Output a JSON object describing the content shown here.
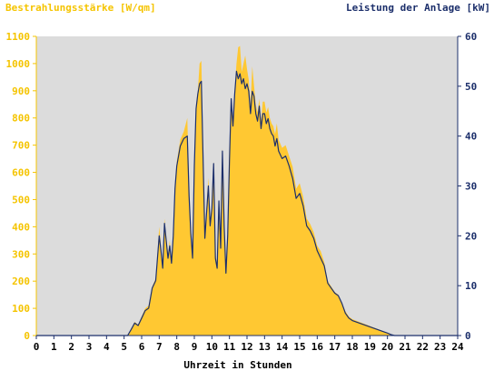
{
  "chart_data": {
    "type": "area",
    "left_axis_label": "Bestrahlungsstärke [W/qm]",
    "right_axis_label": "Leistung der Anlage [kW]",
    "xlabel": "Uhrzeit in Stunden",
    "xlim": [
      0,
      24
    ],
    "ylim_left": [
      0,
      1100
    ],
    "ylim_right": [
      0,
      60
    ],
    "x_ticks": [
      "0",
      "1",
      "2",
      "3",
      "4",
      "5",
      "6",
      "7",
      "8",
      "9",
      "10",
      "11",
      "12",
      "13",
      "14",
      "15",
      "16",
      "17",
      "18",
      "19",
      "20",
      "21",
      "22",
      "23",
      "24"
    ],
    "y_left_ticks": [
      "0",
      "100",
      "200",
      "300",
      "400",
      "500",
      "600",
      "700",
      "800",
      "900",
      "1000",
      "1100"
    ],
    "y_right_ticks": [
      "0",
      "10",
      "20",
      "30",
      "40",
      "50",
      "60"
    ],
    "grid": false,
    "colors": {
      "plot_bg": "#dcdcdc",
      "irradiance_fill": "#ffc832",
      "power_line": "#1c2f6b",
      "left_axis": "#f5c400",
      "right_axis": "#1c2f6b"
    },
    "series": [
      {
        "axis": "left",
        "style": "filled-area",
        "x": [
          0,
          5.2,
          5.4,
          5.6,
          5.8,
          6.0,
          6.2,
          6.4,
          6.6,
          6.8,
          6.9,
          7.0,
          7.1,
          7.2,
          7.3,
          7.4,
          7.5,
          7.6,
          7.7,
          7.8,
          7.9,
          8.0,
          8.2,
          8.4,
          8.6,
          8.7,
          8.8,
          8.9,
          9.0,
          9.1,
          9.2,
          9.3,
          9.4,
          9.6,
          9.8,
          9.9,
          10.0,
          10.1,
          10.2,
          10.3,
          10.4,
          10.5,
          10.6,
          10.7,
          10.8,
          10.9,
          11.0,
          11.1,
          11.2,
          11.3,
          11.4,
          11.5,
          11.6,
          11.7,
          11.8,
          11.9,
          12.0,
          12.1,
          12.2,
          12.3,
          12.4,
          12.5,
          12.6,
          12.7,
          12.8,
          12.9,
          13.0,
          13.1,
          13.2,
          13.3,
          13.4,
          13.5,
          13.6,
          13.7,
          13.8,
          14.0,
          14.2,
          14.4,
          14.6,
          14.8,
          15.0,
          15.2,
          15.4,
          15.6,
          15.8,
          16.0,
          16.2,
          16.4,
          16.6,
          16.8,
          17.0,
          17.2,
          17.4,
          17.6,
          17.8,
          18.0,
          18.4,
          18.8,
          19.2,
          19.6,
          20.0,
          20.2,
          20.4,
          24
        ],
        "y": [
          0,
          0,
          25,
          50,
          40,
          70,
          100,
          110,
          180,
          210,
          300,
          400,
          330,
          260,
          430,
          360,
          300,
          350,
          280,
          380,
          560,
          640,
          720,
          750,
          800,
          550,
          400,
          300,
          640,
          850,
          900,
          1000,
          1010,
          380,
          580,
          420,
          480,
          640,
          300,
          260,
          500,
          340,
          690,
          420,
          250,
          380,
          650,
          880,
          780,
          900,
          1000,
          1060,
          1065,
          970,
          1000,
          1030,
          980,
          940,
          850,
          990,
          920,
          850,
          820,
          870,
          790,
          860,
          860,
          820,
          840,
          800,
          780,
          770,
          740,
          780,
          720,
          690,
          700,
          660,
          620,
          540,
          560,
          510,
          430,
          410,
          380,
          330,
          310,
          270,
          200,
          180,
          160,
          150,
          120,
          90,
          70,
          60,
          50,
          40,
          30,
          20,
          10,
          5,
          0,
          0
        ]
      },
      {
        "axis": "right",
        "style": "line",
        "x": [
          0,
          5.2,
          5.4,
          5.6,
          5.8,
          6.0,
          6.2,
          6.4,
          6.6,
          6.8,
          6.9,
          7.0,
          7.1,
          7.2,
          7.3,
          7.4,
          7.5,
          7.6,
          7.7,
          7.8,
          7.9,
          8.0,
          8.2,
          8.4,
          8.6,
          8.7,
          8.8,
          8.9,
          9.0,
          9.1,
          9.2,
          9.3,
          9.4,
          9.6,
          9.8,
          9.9,
          10.0,
          10.1,
          10.2,
          10.3,
          10.4,
          10.5,
          10.6,
          10.7,
          10.8,
          10.9,
          11.0,
          11.1,
          11.2,
          11.3,
          11.4,
          11.5,
          11.6,
          11.7,
          11.8,
          11.9,
          12.0,
          12.1,
          12.2,
          12.3,
          12.4,
          12.5,
          12.6,
          12.7,
          12.8,
          12.9,
          13.0,
          13.1,
          13.2,
          13.3,
          13.4,
          13.5,
          13.6,
          13.7,
          13.8,
          14.0,
          14.2,
          14.4,
          14.6,
          14.8,
          15.0,
          15.2,
          15.4,
          15.6,
          15.8,
          16.0,
          16.2,
          16.4,
          16.6,
          16.8,
          17.0,
          17.2,
          17.4,
          17.6,
          17.8,
          18.0,
          18.4,
          18.8,
          19.2,
          19.6,
          20.0,
          20.2,
          20.4,
          24
        ],
        "y": [
          0,
          0,
          1.2,
          2.5,
          2.0,
          3.5,
          5.0,
          5.5,
          9.5,
          11.0,
          15.5,
          20.0,
          17.0,
          13.5,
          22.5,
          19.0,
          15.5,
          18.0,
          14.5,
          20.0,
          29.5,
          34.0,
          38.0,
          39.5,
          40.0,
          28.0,
          20.5,
          15.5,
          34.0,
          45.5,
          48.5,
          50.5,
          51.0,
          19.5,
          30.0,
          22.0,
          25.5,
          34.5,
          15.5,
          13.5,
          27.0,
          17.5,
          37.0,
          22.0,
          12.5,
          20.0,
          35.0,
          47.5,
          42.0,
          48.5,
          53.0,
          51.5,
          52.5,
          50.5,
          51.5,
          49.5,
          50.5,
          49.0,
          44.5,
          49.0,
          48.0,
          44.5,
          43.0,
          46.0,
          41.5,
          44.5,
          44.5,
          42.5,
          43.5,
          41.5,
          40.5,
          40.0,
          38.0,
          39.5,
          37.0,
          35.5,
          36.0,
          34.0,
          31.5,
          27.5,
          28.5,
          26.0,
          22.0,
          21.0,
          19.5,
          17.0,
          15.5,
          14.0,
          10.5,
          9.5,
          8.5,
          8.0,
          6.5,
          4.5,
          3.5,
          3.0,
          2.5,
          2.0,
          1.5,
          1.0,
          0.5,
          0.2,
          0,
          0
        ]
      }
    ]
  }
}
